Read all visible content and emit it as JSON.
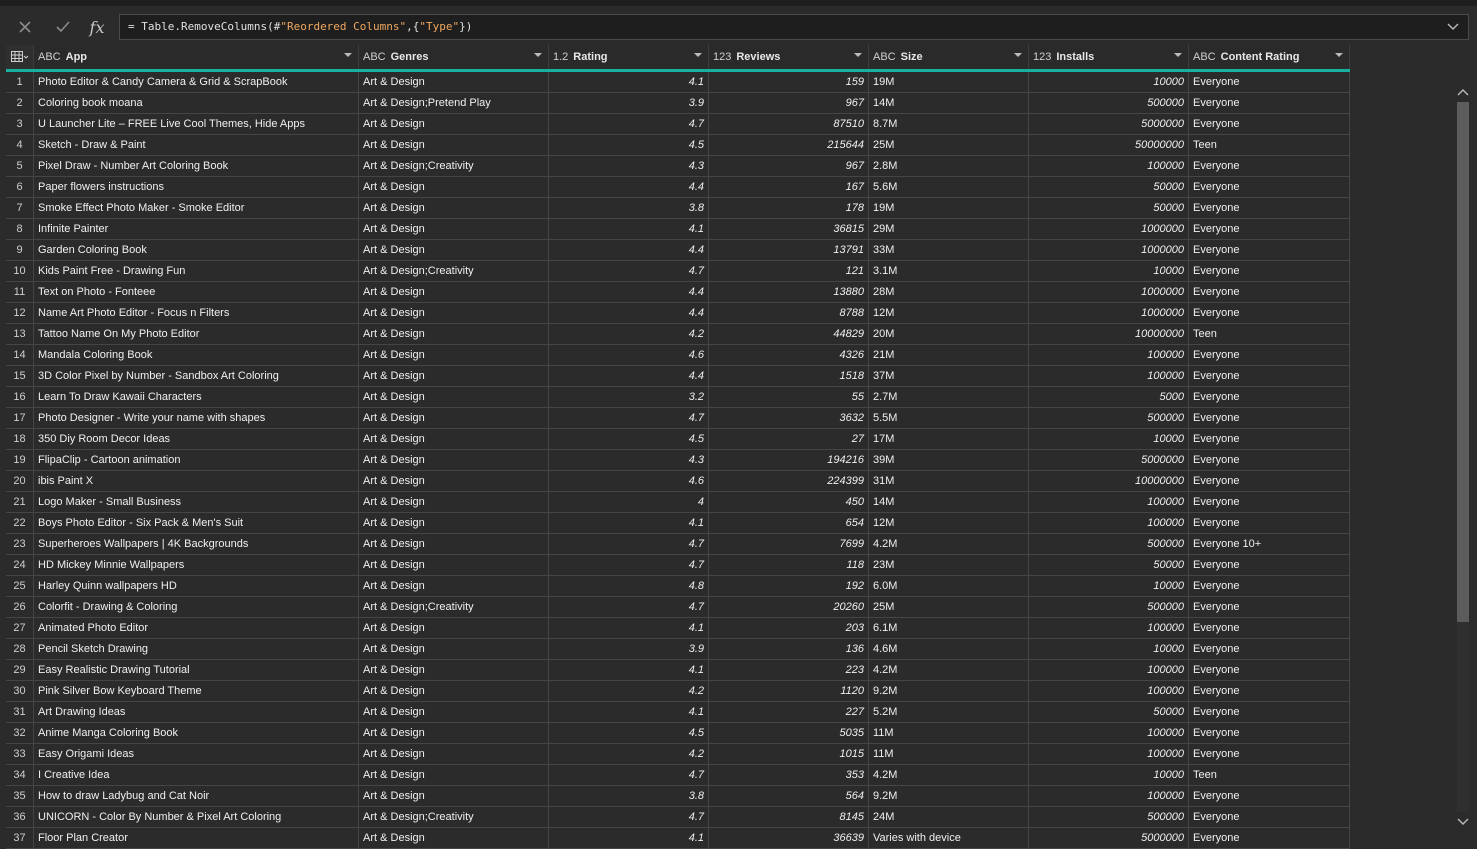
{
  "formula_bar": {
    "cancel_icon": "close-icon",
    "commit_icon": "check-icon",
    "fx_label": "fx",
    "formula_prefix": "= Table.RemoveColumns(#",
    "formula_str1": "\"Reordered Columns\"",
    "formula_mid": ",{",
    "formula_str2": "\"Type\"",
    "formula_suffix": "})"
  },
  "columns": [
    {
      "type_icon": "ABC",
      "label": "App"
    },
    {
      "type_icon": "ABC",
      "label": "Genres"
    },
    {
      "type_icon": "1.2",
      "label": "Rating"
    },
    {
      "type_icon": "123",
      "label": "Reviews"
    },
    {
      "type_icon": "ABC",
      "label": "Size"
    },
    {
      "type_icon": "123",
      "label": "Installs"
    },
    {
      "type_icon": "ABC",
      "label": "Content Rating"
    }
  ],
  "rows": [
    [
      "1",
      "Photo Editor & Candy Camera & Grid & ScrapBook",
      "Art & Design",
      "4.1",
      "159",
      "19M",
      "10000",
      "Everyone"
    ],
    [
      "2",
      "Coloring book moana",
      "Art & Design;Pretend Play",
      "3.9",
      "967",
      "14M",
      "500000",
      "Everyone"
    ],
    [
      "3",
      "U Launcher Lite – FREE Live Cool Themes, Hide Apps",
      "Art & Design",
      "4.7",
      "87510",
      "8.7M",
      "5000000",
      "Everyone"
    ],
    [
      "4",
      "Sketch - Draw & Paint",
      "Art & Design",
      "4.5",
      "215644",
      "25M",
      "50000000",
      "Teen"
    ],
    [
      "5",
      "Pixel Draw - Number Art Coloring Book",
      "Art & Design;Creativity",
      "4.3",
      "967",
      "2.8M",
      "100000",
      "Everyone"
    ],
    [
      "6",
      "Paper flowers instructions",
      "Art & Design",
      "4.4",
      "167",
      "5.6M",
      "50000",
      "Everyone"
    ],
    [
      "7",
      "Smoke Effect Photo Maker - Smoke Editor",
      "Art & Design",
      "3.8",
      "178",
      "19M",
      "50000",
      "Everyone"
    ],
    [
      "8",
      "Infinite Painter",
      "Art & Design",
      "4.1",
      "36815",
      "29M",
      "1000000",
      "Everyone"
    ],
    [
      "9",
      "Garden Coloring Book",
      "Art & Design",
      "4.4",
      "13791",
      "33M",
      "1000000",
      "Everyone"
    ],
    [
      "10",
      "Kids Paint Free - Drawing Fun",
      "Art & Design;Creativity",
      "4.7",
      "121",
      "3.1M",
      "10000",
      "Everyone"
    ],
    [
      "11",
      "Text on Photo - Fonteee",
      "Art & Design",
      "4.4",
      "13880",
      "28M",
      "1000000",
      "Everyone"
    ],
    [
      "12",
      "Name Art Photo Editor - Focus n Filters",
      "Art & Design",
      "4.4",
      "8788",
      "12M",
      "1000000",
      "Everyone"
    ],
    [
      "13",
      "Tattoo Name On My Photo Editor",
      "Art & Design",
      "4.2",
      "44829",
      "20M",
      "10000000",
      "Teen"
    ],
    [
      "14",
      "Mandala Coloring Book",
      "Art & Design",
      "4.6",
      "4326",
      "21M",
      "100000",
      "Everyone"
    ],
    [
      "15",
      "3D Color Pixel by Number - Sandbox Art Coloring",
      "Art & Design",
      "4.4",
      "1518",
      "37M",
      "100000",
      "Everyone"
    ],
    [
      "16",
      "Learn To Draw Kawaii Characters",
      "Art & Design",
      "3.2",
      "55",
      "2.7M",
      "5000",
      "Everyone"
    ],
    [
      "17",
      "Photo Designer - Write your name with shapes",
      "Art & Design",
      "4.7",
      "3632",
      "5.5M",
      "500000",
      "Everyone"
    ],
    [
      "18",
      "350 Diy Room Decor Ideas",
      "Art & Design",
      "4.5",
      "27",
      "17M",
      "10000",
      "Everyone"
    ],
    [
      "19",
      "FlipaClip - Cartoon animation",
      "Art & Design",
      "4.3",
      "194216",
      "39M",
      "5000000",
      "Everyone"
    ],
    [
      "20",
      "ibis Paint X",
      "Art & Design",
      "4.6",
      "224399",
      "31M",
      "10000000",
      "Everyone"
    ],
    [
      "21",
      "Logo Maker - Small Business",
      "Art & Design",
      "4",
      "450",
      "14M",
      "100000",
      "Everyone"
    ],
    [
      "22",
      "Boys Photo Editor - Six Pack & Men's Suit",
      "Art & Design",
      "4.1",
      "654",
      "12M",
      "100000",
      "Everyone"
    ],
    [
      "23",
      "Superheroes Wallpapers | 4K Backgrounds",
      "Art & Design",
      "4.7",
      "7699",
      "4.2M",
      "500000",
      "Everyone 10+"
    ],
    [
      "24",
      "HD Mickey Minnie Wallpapers",
      "Art & Design",
      "4.7",
      "118",
      "23M",
      "50000",
      "Everyone"
    ],
    [
      "25",
      "Harley Quinn wallpapers HD",
      "Art & Design",
      "4.8",
      "192",
      "6.0M",
      "10000",
      "Everyone"
    ],
    [
      "26",
      "Colorfit - Drawing & Coloring",
      "Art & Design;Creativity",
      "4.7",
      "20260",
      "25M",
      "500000",
      "Everyone"
    ],
    [
      "27",
      "Animated Photo Editor",
      "Art & Design",
      "4.1",
      "203",
      "6.1M",
      "100000",
      "Everyone"
    ],
    [
      "28",
      "Pencil Sketch Drawing",
      "Art & Design",
      "3.9",
      "136",
      "4.6M",
      "10000",
      "Everyone"
    ],
    [
      "29",
      "Easy Realistic Drawing Tutorial",
      "Art & Design",
      "4.1",
      "223",
      "4.2M",
      "100000",
      "Everyone"
    ],
    [
      "30",
      "Pink Silver Bow Keyboard Theme",
      "Art & Design",
      "4.2",
      "1120",
      "9.2M",
      "100000",
      "Everyone"
    ],
    [
      "31",
      "Art Drawing Ideas",
      "Art & Design",
      "4.1",
      "227",
      "5.2M",
      "50000",
      "Everyone"
    ],
    [
      "32",
      "Anime Manga Coloring Book",
      "Art & Design",
      "4.5",
      "5035",
      "11M",
      "100000",
      "Everyone"
    ],
    [
      "33",
      "Easy Origami Ideas",
      "Art & Design",
      "4.2",
      "1015",
      "11M",
      "100000",
      "Everyone"
    ],
    [
      "34",
      "I Creative Idea",
      "Art & Design",
      "4.7",
      "353",
      "4.2M",
      "10000",
      "Teen"
    ],
    [
      "35",
      "How to draw Ladybug and Cat Noir",
      "Art & Design",
      "3.8",
      "564",
      "9.2M",
      "100000",
      "Everyone"
    ],
    [
      "36",
      "UNICORN - Color By Number & Pixel Art Coloring",
      "Art & Design;Creativity",
      "4.7",
      "8145",
      "24M",
      "500000",
      "Everyone"
    ],
    [
      "37",
      "Floor Plan Creator",
      "Art & Design",
      "4.1",
      "36639",
      "Varies with device",
      "5000000",
      "Everyone"
    ]
  ]
}
